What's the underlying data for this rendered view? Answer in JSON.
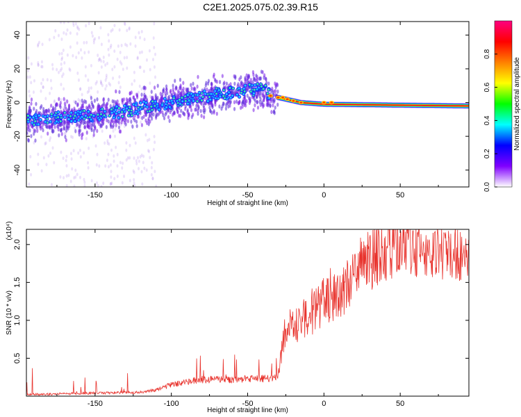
{
  "title": "C2E1.2025.075.02.39.R15",
  "chart_data": [
    {
      "type": "heatmap",
      "xlabel": "Height of straight line (km)",
      "ylabel": "Frequency (Hz)",
      "xlim": [
        -195,
        95
      ],
      "ylim": [
        -50,
        48
      ],
      "xticks": [
        -150,
        -100,
        -50,
        0,
        50
      ],
      "yticks": [
        -40,
        -20,
        0,
        20,
        40
      ],
      "colorbar": {
        "label": "Normalized spectral amplitude",
        "range": [
          0,
          1
        ],
        "ticks": [
          "0.0",
          "0.2",
          "0.4",
          "0.6",
          "0.8"
        ],
        "colors": [
          "#ffffff",
          "#8000ff",
          "#0000ff",
          "#00ffff",
          "#00ff00",
          "#ffff00",
          "#ff8000",
          "#ff0000",
          "#ff0080"
        ]
      },
      "ridge": {
        "description_points_x": [
          -195,
          -150,
          -100,
          -70,
          -40,
          -35,
          -25,
          -15,
          0,
          95
        ],
        "description_points_y": [
          -10,
          -8,
          0,
          5,
          8,
          4,
          2,
          0,
          -1,
          -2
        ]
      }
    },
    {
      "type": "line",
      "xlabel": "Height of straight line (km)",
      "ylabel": "SNR (10 * v/v)",
      "multiplier": "(x10⁴)",
      "xlim": [
        -195,
        95
      ],
      "ylim": [
        0,
        2.2
      ],
      "xticks": [
        -150,
        -100,
        -50,
        0,
        50
      ],
      "yticks": [
        "0.5",
        "1.0",
        "1.5",
        "2.0"
      ],
      "series": [
        {
          "name": "SNR",
          "color": "#e8322c",
          "x": [
            -195,
            -150,
            -120,
            -110,
            -100,
            -80,
            -60,
            -40,
            -30,
            -25,
            -20,
            -10,
            0,
            10,
            20,
            30,
            40,
            50,
            60,
            70,
            80,
            95
          ],
          "y": [
            0.02,
            0.04,
            0.05,
            0.08,
            0.15,
            0.22,
            0.22,
            0.23,
            0.25,
            0.9,
            0.95,
            1.05,
            1.25,
            1.35,
            1.55,
            1.8,
            1.92,
            2.0,
            1.92,
            1.9,
            1.88,
            1.85
          ]
        }
      ]
    }
  ]
}
